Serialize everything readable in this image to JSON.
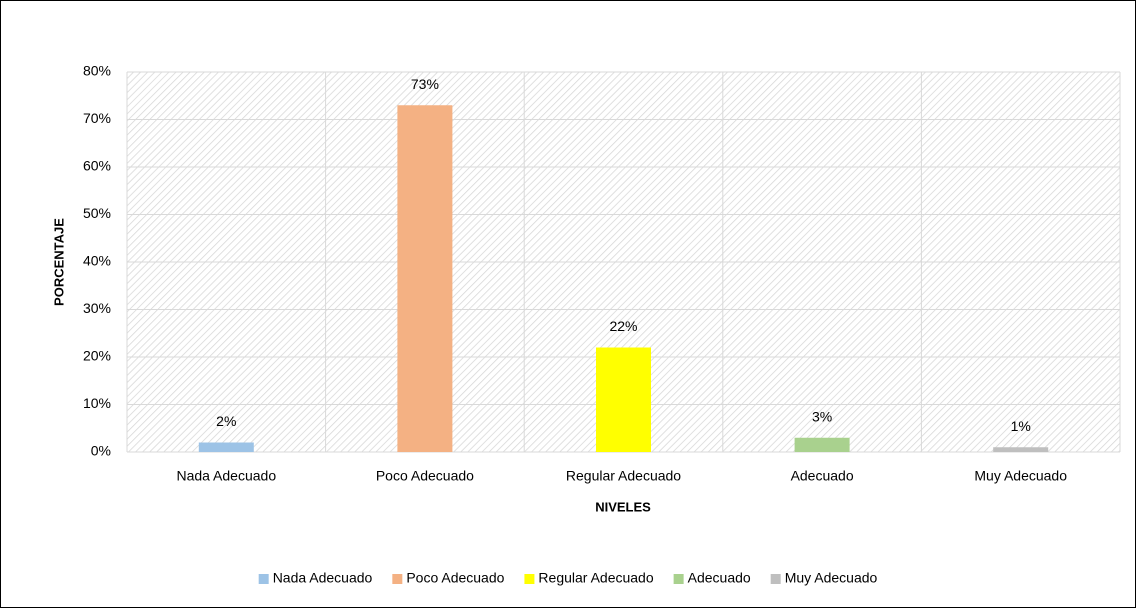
{
  "chart_data": {
    "type": "bar",
    "categories": [
      "Nada Adecuado",
      "Poco Adecuado",
      "Regular Adecuado",
      "Adecuado",
      "Muy Adecuado"
    ],
    "values": [
      2,
      73,
      22,
      3,
      1
    ],
    "value_labels": [
      "2%",
      "73%",
      "22%",
      "3%",
      "1%"
    ],
    "colors": [
      "#9dc3e6",
      "#f4b183",
      "#ffff00",
      "#a9d18e",
      "#bfbfbf"
    ],
    "x_label": "NIVELES",
    "y_label": "PORCENTAJE",
    "ylim": [
      0,
      80
    ],
    "yticks": [
      {
        "value": 0,
        "label": "0%"
      },
      {
        "value": 10,
        "label": "10%"
      },
      {
        "value": 20,
        "label": "20%"
      },
      {
        "value": 30,
        "label": "30%"
      },
      {
        "value": 40,
        "label": "40%"
      },
      {
        "value": 50,
        "label": "50%"
      },
      {
        "value": 60,
        "label": "60%"
      },
      {
        "value": 70,
        "label": "70%"
      },
      {
        "value": 80,
        "label": "80%"
      }
    ],
    "grid": true,
    "legend": "bottom"
  }
}
